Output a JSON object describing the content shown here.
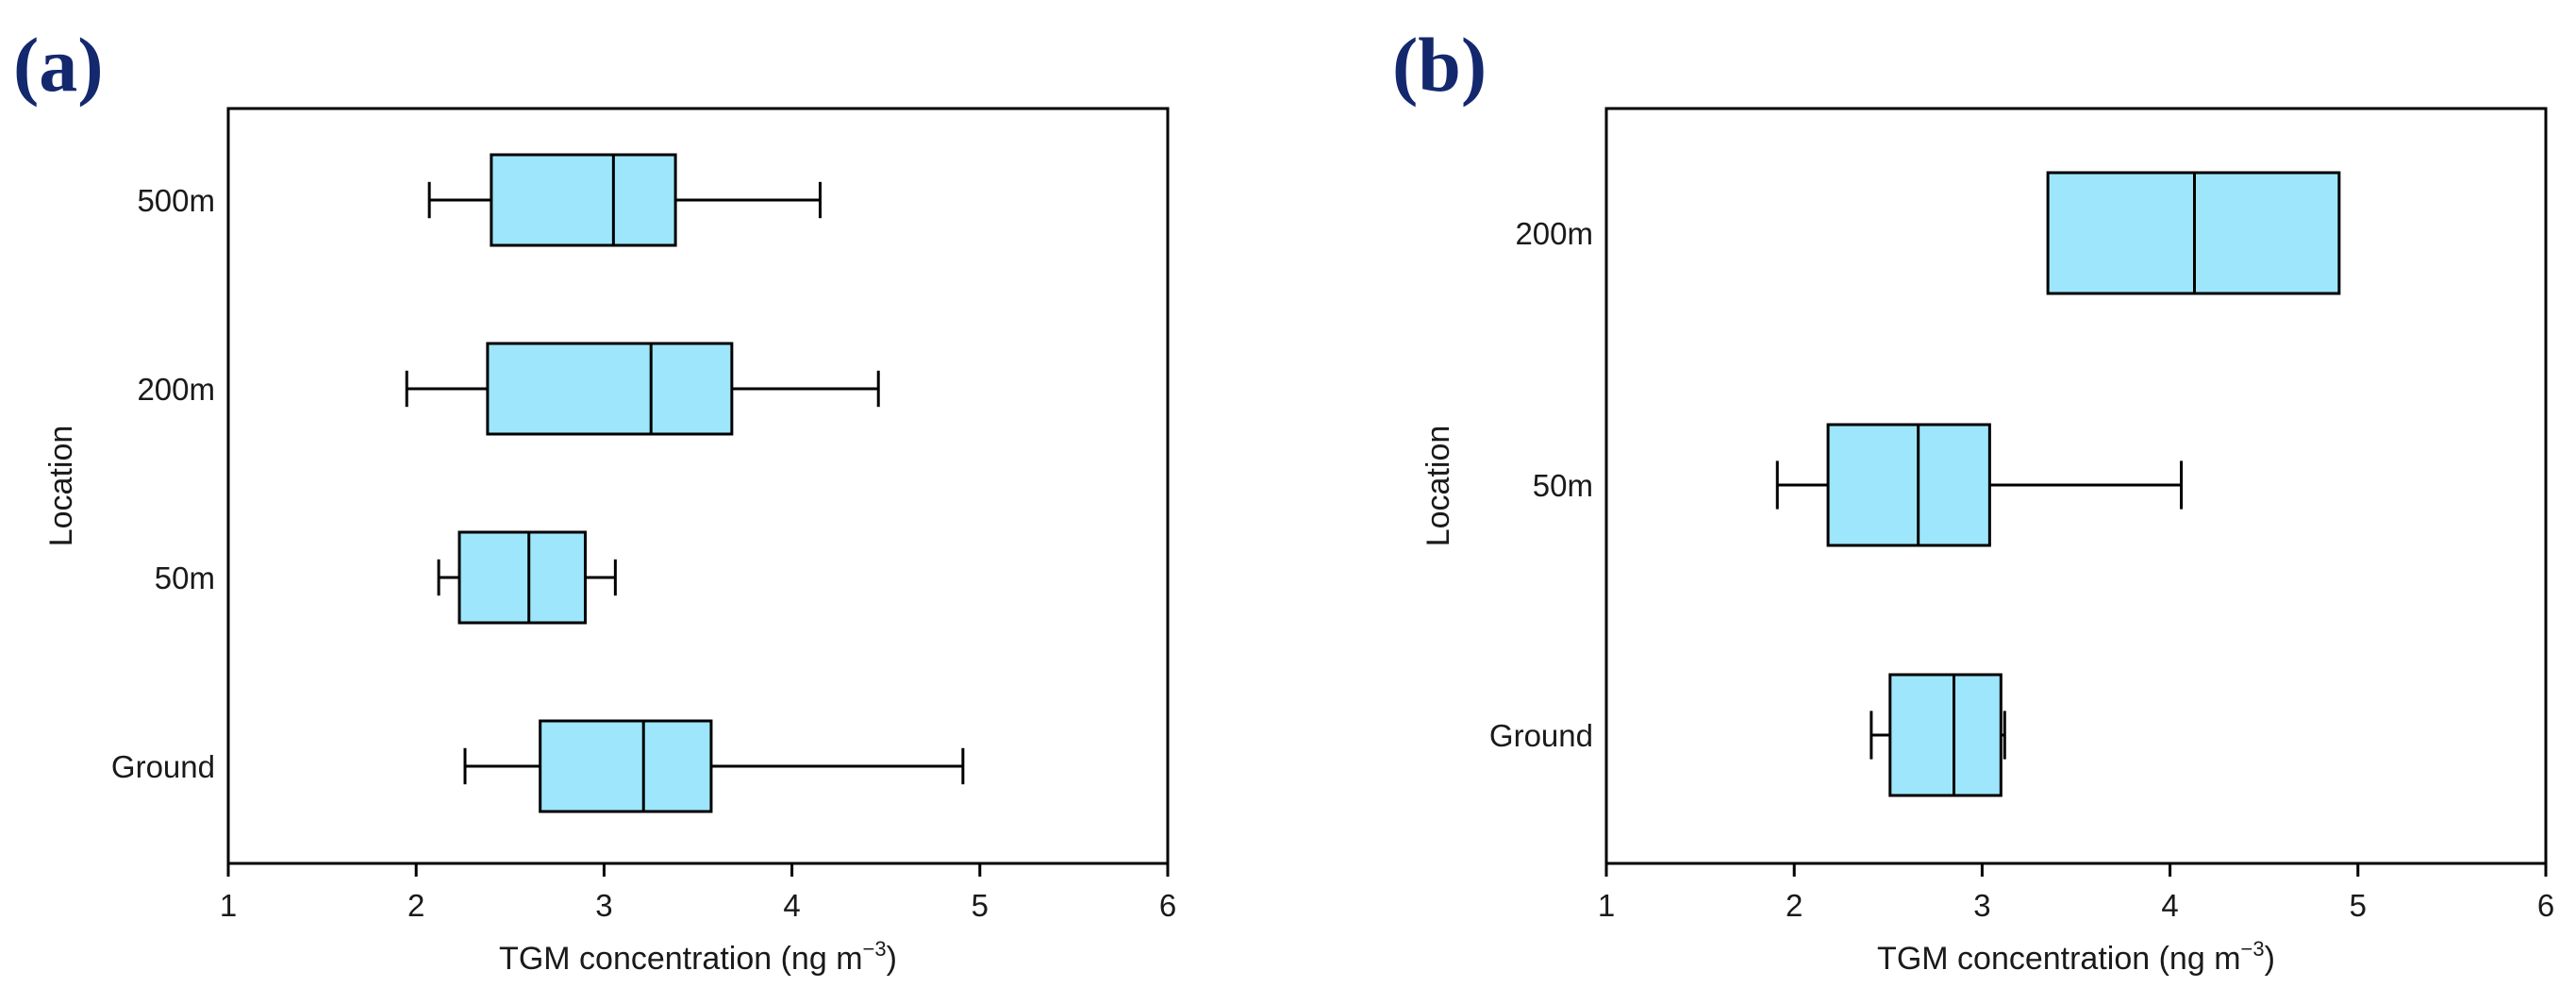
{
  "chart_data": [
    {
      "type": "boxplot",
      "panel_label": "(a)",
      "orientation": "horizontal",
      "xlabel": "TGM concentration (ng m",
      "xlabel_sup": "−3",
      "xlabel_close": ")",
      "ylabel": "Location",
      "xlim": [
        1,
        6
      ],
      "xticks": [
        "1",
        "2",
        "3",
        "4",
        "5",
        "6"
      ],
      "box_color": "#9ee6fb",
      "categories": [
        "500m",
        "200m",
        "50m",
        "Ground"
      ],
      "boxes": [
        {
          "label": "500m",
          "min": 2.07,
          "q1": 2.4,
          "median": 3.05,
          "q3": 3.38,
          "max": 4.15
        },
        {
          "label": "200m",
          "min": 1.95,
          "q1": 2.38,
          "median": 3.25,
          "q3": 3.68,
          "max": 4.46
        },
        {
          "label": "50m",
          "min": 2.12,
          "q1": 2.23,
          "median": 2.6,
          "q3": 2.9,
          "max": 3.06
        },
        {
          "label": "Ground",
          "min": 2.26,
          "q1": 2.66,
          "median": 3.21,
          "q3": 3.57,
          "max": 4.91
        }
      ]
    },
    {
      "type": "boxplot",
      "panel_label": "(b)",
      "orientation": "horizontal",
      "xlabel": "TGM concentration (ng m",
      "xlabel_sup": "−3",
      "xlabel_close": ")",
      "ylabel": "Location",
      "xlim": [
        1,
        6
      ],
      "xticks": [
        "1",
        "2",
        "3",
        "4",
        "5",
        "6"
      ],
      "box_color": "#9ee6fb",
      "categories": [
        "200m",
        "50m",
        "Ground"
      ],
      "boxes": [
        {
          "label": "200m",
          "q1": 3.35,
          "median": 4.13,
          "q3": 4.9
        },
        {
          "label": "50m",
          "min": 1.91,
          "q1": 2.18,
          "median": 2.66,
          "q3": 3.04,
          "max": 4.06
        },
        {
          "label": "Ground",
          "min": 2.41,
          "q1": 2.51,
          "median": 2.85,
          "q3": 3.1,
          "max": 3.12
        }
      ]
    }
  ]
}
